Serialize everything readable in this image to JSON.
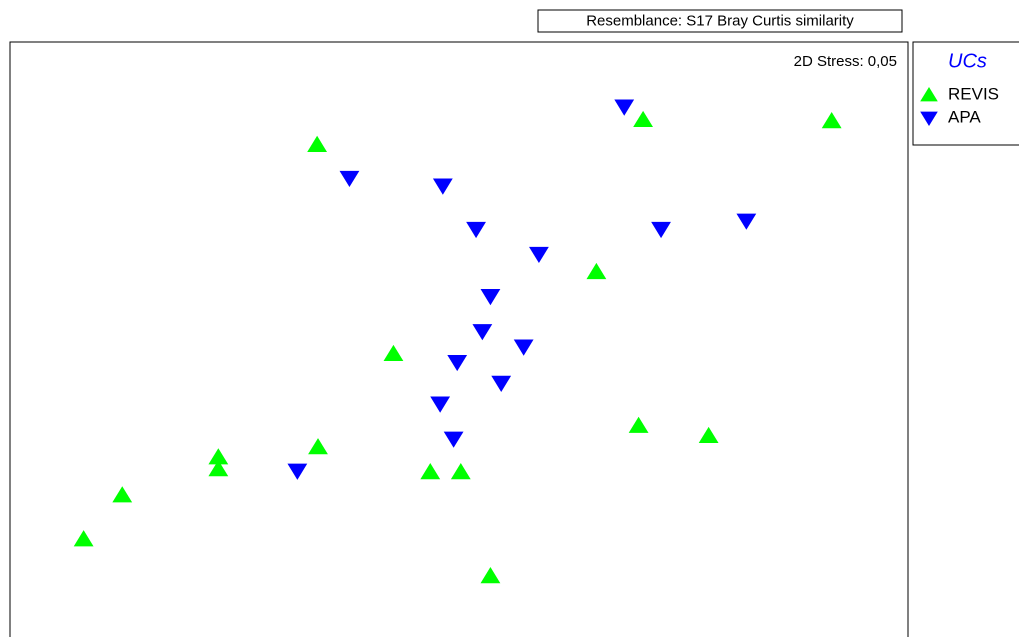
{
  "chart_data": {
    "type": "scatter",
    "title": "Resemblance: S17 Bray Curtis similarity",
    "annotation": "2D Stress: 0,05",
    "legend_title": "UCs",
    "xlim": [
      0,
      100
    ],
    "ylim": [
      0,
      100
    ],
    "series": [
      {
        "name": "REVIS",
        "color": "#00ff00",
        "marker": "triangle-up",
        "x": [
          34.2,
          70.5,
          91.5,
          65.3,
          42.7,
          70.0,
          77.8,
          34.3,
          23.2,
          23.2,
          46.8,
          50.2,
          12.5,
          8.2,
          53.5
        ],
        "values": [
          82.7,
          86.9,
          86.7,
          61.3,
          47.5,
          35.4,
          33.7,
          31.8,
          30.1,
          28.1,
          27.6,
          27.6,
          23.7,
          16.3,
          10.1
        ]
      },
      {
        "name": "APA",
        "color": "#0000ff",
        "marker": "triangle-down",
        "x": [
          68.4,
          37.8,
          48.2,
          51.9,
          72.5,
          82.0,
          58.9,
          53.5,
          52.6,
          57.2,
          49.8,
          54.7,
          47.9,
          49.4,
          32.0
        ],
        "values": [
          89.1,
          77.1,
          75.8,
          68.5,
          68.5,
          69.9,
          64.3,
          57.2,
          51.3,
          48.7,
          46.1,
          42.6,
          39.1,
          33.2,
          27.8
        ]
      }
    ]
  }
}
